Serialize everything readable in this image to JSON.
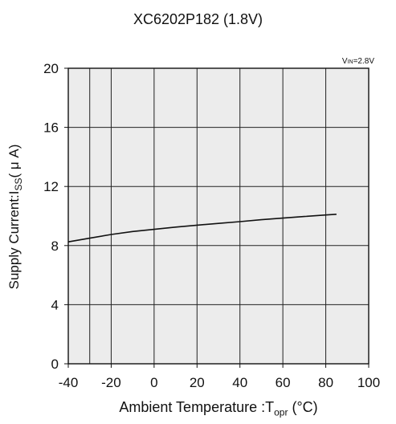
{
  "chart_data": {
    "type": "line",
    "title": "XC6202P182 (1.8V)",
    "condition": {
      "prefix": "V",
      "sub": "IN",
      "suffix": "=2.8V"
    },
    "xlabel": {
      "prefix": "Ambient Temperature :T",
      "sub": "opr",
      "suffix": " (°C)"
    },
    "ylabel": {
      "prefix": "Supply Current:I",
      "sub": "SS",
      "suffix": "( μ A)"
    },
    "xlim": [
      -40,
      100
    ],
    "ylim": [
      0,
      20
    ],
    "xticks": [
      -40,
      -20,
      0,
      20,
      40,
      60,
      80,
      100
    ],
    "yticks": [
      0,
      4,
      8,
      12,
      16,
      20
    ],
    "x_minor_grid": [
      -30
    ],
    "grid": true,
    "series": [
      {
        "x": [
          -40,
          -30,
          -20,
          -10,
          0,
          10,
          20,
          30,
          40,
          50,
          60,
          70,
          80,
          85
        ],
        "y": [
          8.25,
          8.5,
          8.75,
          8.95,
          9.1,
          9.25,
          9.38,
          9.5,
          9.62,
          9.75,
          9.86,
          9.97,
          10.07,
          10.12
        ]
      }
    ]
  }
}
